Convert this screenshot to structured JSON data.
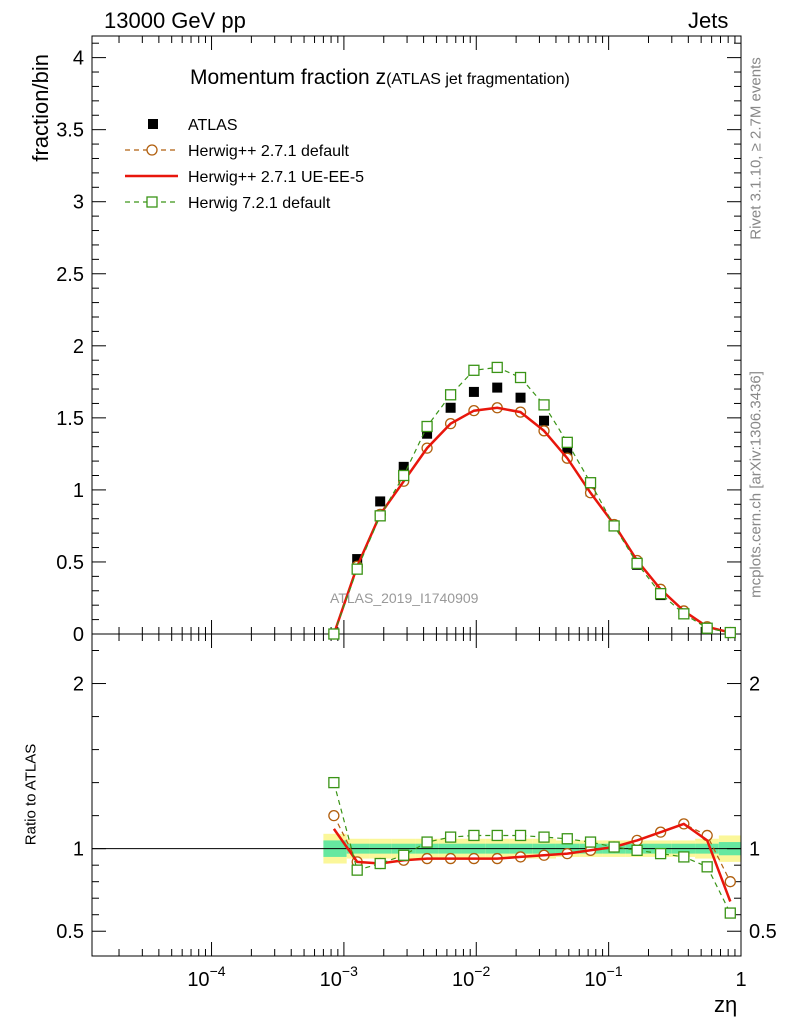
{
  "header": {
    "left": "13000 GeV pp",
    "right": "Jets"
  },
  "chart_data": {
    "type": "line",
    "title": "Momentum fraction z",
    "subtitle": "(ATLAS jet fragmentation)",
    "analysis": "ATLAS_2019_I1740909",
    "xlabel": "zη",
    "ylabel": "fraction/bin",
    "ratio_ylabel": "Ratio to ATLAS",
    "side_text_top": "Rivet 3.1.10, ≥ 2.7M events",
    "side_text_bottom": "mcplots.cern.ch [arXiv:1306.3436]",
    "xscale": "log",
    "xlim": [
      1.25e-05,
      1
    ],
    "ylim": [
      0,
      4.15
    ],
    "ratio_ylim": [
      0.35,
      2.3
    ],
    "x_ticks": [
      {
        "v": 0.0001,
        "label": "10",
        "exp": "−4"
      },
      {
        "v": 0.001,
        "label": "10",
        "exp": "−3"
      },
      {
        "v": 0.01,
        "label": "10",
        "exp": "−2"
      },
      {
        "v": 0.1,
        "label": "10",
        "exp": "−1"
      },
      {
        "v": 1,
        "label": "1",
        "exp": ""
      }
    ],
    "y_ticks": [
      0,
      0.5,
      1,
      1.5,
      2,
      2.5,
      3,
      3.5,
      4
    ],
    "y_tick_labels": [
      "0",
      "0.5",
      "1",
      "1.5",
      "2",
      "2.5",
      "3",
      "3.5",
      "4"
    ],
    "ratio_ticks": [
      0.5,
      1,
      2
    ],
    "ratio_tick_labels": [
      "0.5",
      "1",
      "2"
    ],
    "x": [
      0.00084,
      0.00126,
      0.00188,
      0.00283,
      0.00425,
      0.0064,
      0.0096,
      0.0144,
      0.0216,
      0.0325,
      0.0487,
      0.073,
      0.11,
      0.164,
      0.247,
      0.37,
      0.555,
      0.83
    ],
    "legend_position": "top-left",
    "series": [
      {
        "name": "ATLAS",
        "style": "data",
        "color": "#000000",
        "values": [
          0.0,
          0.52,
          0.92,
          1.16,
          1.39,
          1.57,
          1.68,
          1.71,
          1.64,
          1.48,
          1.26,
          0.99,
          0.75,
          0.48,
          0.27,
          0.14,
          0.04,
          0.01
        ]
      },
      {
        "name": "Herwig++ 2.7.1 default",
        "style": "dashed-circle",
        "color": "#b15f0e",
        "values": [
          0.0,
          0.47,
          0.83,
          1.06,
          1.29,
          1.46,
          1.55,
          1.57,
          1.54,
          1.41,
          1.22,
          0.98,
          0.76,
          0.51,
          0.31,
          0.16,
          0.05,
          0.01
        ]
      },
      {
        "name": "Herwig++ 2.7.1 UE-EE-5",
        "style": "solid",
        "color": "#e8160c",
        "values": [
          0.0,
          0.47,
          0.83,
          1.06,
          1.29,
          1.46,
          1.55,
          1.57,
          1.54,
          1.41,
          1.22,
          0.98,
          0.76,
          0.51,
          0.31,
          0.16,
          0.05,
          0.01
        ]
      },
      {
        "name": "Herwig 7.2.1 default",
        "style": "dashed-square",
        "color": "#3a9416",
        "values": [
          0.0,
          0.45,
          0.82,
          1.1,
          1.44,
          1.66,
          1.83,
          1.85,
          1.78,
          1.59,
          1.33,
          1.05,
          0.75,
          0.49,
          0.28,
          0.14,
          0.04,
          0.01
        ]
      }
    ],
    "ratio_series": [
      {
        "name": "Herwig++ 2.7.1 default",
        "values": [
          1.2,
          0.92,
          0.91,
          0.93,
          0.94,
          0.94,
          0.94,
          0.94,
          0.95,
          0.96,
          0.97,
          0.99,
          1.01,
          1.05,
          1.1,
          1.15,
          1.08,
          0.8
        ]
      },
      {
        "name": "Herwig++ 2.7.1 UE-EE-5",
        "values": [
          1.12,
          0.92,
          0.91,
          0.93,
          0.94,
          0.94,
          0.94,
          0.94,
          0.95,
          0.96,
          0.97,
          0.99,
          1.01,
          1.05,
          1.1,
          1.15,
          1.05,
          0.68
        ]
      },
      {
        "name": "Herwig 7.2.1 default",
        "values": [
          1.4,
          0.87,
          0.91,
          0.96,
          1.04,
          1.07,
          1.08,
          1.08,
          1.08,
          1.07,
          1.06,
          1.04,
          1.01,
          0.99,
          0.97,
          0.95,
          0.89,
          0.61
        ]
      }
    ],
    "ratio_band": {
      "x_edges": [
        0.0007,
        0.00105,
        0.00155,
        0.0023,
        0.0035,
        0.0052,
        0.0078,
        0.0118,
        0.0177,
        0.0265,
        0.04,
        0.06,
        0.09,
        0.135,
        0.2,
        0.3,
        0.45,
        0.68,
        1.0
      ],
      "inner": [
        0.05,
        0.03,
        0.03,
        0.03,
        0.03,
        0.03,
        0.03,
        0.03,
        0.03,
        0.03,
        0.03,
        0.03,
        0.03,
        0.03,
        0.03,
        0.03,
        0.03,
        0.04
      ],
      "outer": [
        0.09,
        0.06,
        0.06,
        0.06,
        0.06,
        0.06,
        0.06,
        0.06,
        0.06,
        0.06,
        0.05,
        0.05,
        0.05,
        0.05,
        0.05,
        0.05,
        0.06,
        0.08
      ]
    },
    "colors": {
      "band_inner": "#66e8a0",
      "band_outer": "#fbf79a"
    }
  }
}
